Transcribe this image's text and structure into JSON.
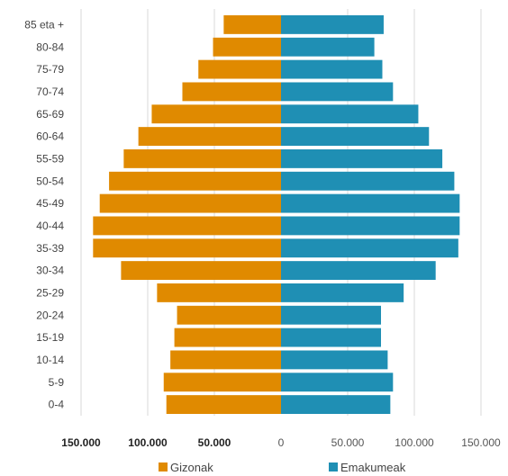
{
  "chart_data": {
    "type": "bar",
    "orientation": "horizontal",
    "subtype": "population-pyramid",
    "categories": [
      "0-4",
      "5-9",
      "10-14",
      "15-19",
      "20-24",
      "25-29",
      "30-34",
      "35-39",
      "40-44",
      "45-49",
      "50-54",
      "55-59",
      "60-64",
      "65-69",
      "70-74",
      "75-79",
      "80-84",
      "85 eta +"
    ],
    "series": [
      {
        "name": "Gizonak",
        "color": "#e08a00",
        "side": "left",
        "values": [
          86000,
          88000,
          83000,
          80000,
          78000,
          93000,
          120000,
          141000,
          141000,
          136000,
          129000,
          118000,
          107000,
          97000,
          74000,
          62000,
          51000,
          43000
        ]
      },
      {
        "name": "Emakumeak",
        "color": "#1f8fb4",
        "side": "right",
        "values": [
          82000,
          84000,
          80000,
          75000,
          75000,
          92000,
          116000,
          133000,
          134000,
          134000,
          130000,
          121000,
          111000,
          103000,
          84000,
          76000,
          70000,
          77000
        ]
      }
    ],
    "x_ticks": [
      {
        "label": "150.000",
        "value": -150000,
        "style": "bold"
      },
      {
        "label": "100.000",
        "value": -100000,
        "style": "bold"
      },
      {
        "label": "50.000",
        "value": -50000,
        "style": "bold"
      },
      {
        "label": "0",
        "value": 0,
        "style": "light"
      },
      {
        "label": "50.000",
        "value": 50000,
        "style": "light"
      },
      {
        "label": "100.000",
        "value": 100000,
        "style": "light"
      },
      {
        "label": "150.000",
        "value": 150000,
        "style": "light"
      }
    ],
    "xlim": [
      -150000,
      150000
    ],
    "grid": true,
    "legend_position": "bottom"
  }
}
